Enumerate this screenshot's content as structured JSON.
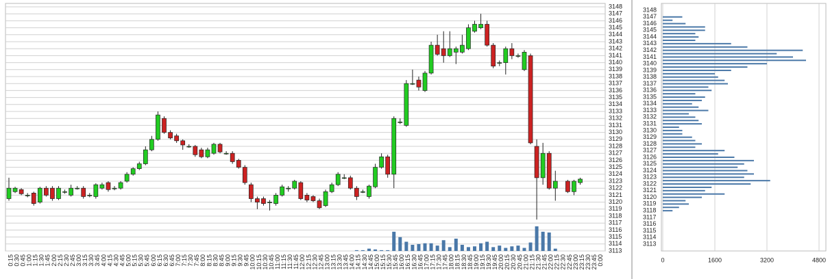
{
  "chart_data": [
    {
      "type": "candlestick",
      "categories": [
        "0:15",
        "0:30",
        "0:45",
        "1:00",
        "1:15",
        "1:30",
        "1:45",
        "2:00",
        "2:15",
        "2:30",
        "2:45",
        "3:00",
        "3:15",
        "3:30",
        "3:45",
        "4:00",
        "4:15",
        "4:30",
        "4:45",
        "5:00",
        "5:15",
        "5:30",
        "5:45",
        "6:00",
        "6:15",
        "6:30",
        "6:45",
        "7:00",
        "7:15",
        "7:30",
        "7:45",
        "8:00",
        "8:15",
        "8:30",
        "8:45",
        "9:00",
        "9:15",
        "9:30",
        "9:45",
        "10:00",
        "10:15",
        "10:30",
        "10:45",
        "11:00",
        "11:15",
        "11:30",
        "11:45",
        "12:00",
        "12:15",
        "12:30",
        "12:45",
        "13:00",
        "13:15",
        "13:30",
        "13:45",
        "14:00",
        "14:15",
        "14:30",
        "14:45",
        "15:00",
        "15:15",
        "15:30",
        "15:45",
        "16:00",
        "16:15",
        "16:30",
        "16:45",
        "17:00",
        "17:15",
        "17:30",
        "17:45",
        "18:00",
        "18:15",
        "18:30",
        "18:45",
        "19:00",
        "19:15",
        "19:30",
        "19:45",
        "20:00",
        "20:15",
        "20:30",
        "20:45",
        "21:00",
        "21:15",
        "21:30",
        "21:45",
        "22:00",
        "22:15",
        "22:30",
        "22:45",
        "23:00",
        "23:15",
        "23:30",
        "23:45",
        "0:00"
      ],
      "open": [
        3120.5,
        3121.5,
        3121.8,
        3121,
        3121.3,
        3120,
        3122,
        3122,
        3120.5,
        3121.5,
        3121,
        3122,
        3122,
        3121,
        3120.8,
        3122,
        3122.8,
        3122,
        3122,
        3123,
        3124,
        3124.8,
        3125.5,
        3127.5,
        3129,
        3132,
        3130,
        3129.5,
        3128.8,
        3128,
        3128,
        3127.5,
        3126.5,
        3127,
        3128.3,
        3127,
        3127,
        3126,
        3125,
        3122.5,
        3120.5,
        3120.5,
        3120,
        3119.8,
        3121,
        3122,
        3122,
        3122.8,
        3121,
        3120.8,
        3120.2,
        3119.5,
        3121.5,
        3122.5,
        3123.5,
        3123.5,
        3122,
        3121.5,
        3120.8,
        3122.2,
        3125,
        3126.5,
        3124,
        3131.5,
        3131,
        3137,
        3137.5,
        3136,
        3138.5,
        3142.5,
        3142,
        3141,
        3141.5,
        3141.5,
        3142,
        3144.5,
        3145,
        3145.5,
        3142.5,
        3140,
        3140,
        3142,
        3141,
        3139,
        3141,
        3128,
        3123.5,
        3127,
        3122,
        null,
        3123,
        3121.5,
        3122.8,
        null,
        null,
        null
      ],
      "high": [
        3123.5,
        3122.2,
        3122,
        3121.3,
        3121.5,
        3122.2,
        3122.3,
        3122.3,
        3122.3,
        3121.8,
        3122.5,
        3122.3,
        3122.3,
        3121.3,
        3122.7,
        3122.8,
        3123,
        3122.3,
        3123,
        3124.3,
        3125,
        3125.8,
        3128,
        3129.5,
        3133,
        3132.3,
        3130.3,
        3129.8,
        3129,
        3128.3,
        3128.2,
        3127.8,
        3127.8,
        3128.5,
        3128.5,
        3127.3,
        3127.3,
        3126.2,
        3125.3,
        3122.8,
        3120.8,
        3120.8,
        3120.3,
        3121.3,
        3122.5,
        3122.3,
        3123.2,
        3123,
        3121.3,
        3121,
        3120.5,
        3121.8,
        3122.8,
        3124.3,
        3124,
        3123.8,
        3122.3,
        3121.8,
        3122.5,
        3125.5,
        3127,
        3126.8,
        3132.3,
        3132,
        3137.5,
        3139,
        3138,
        3138.8,
        3143,
        3144,
        3144.5,
        3144.5,
        3142.3,
        3144,
        3145.5,
        3146,
        3147,
        3146,
        3142.8,
        3140.3,
        3142.3,
        3142.8,
        3141.3,
        3141.8,
        3141.3,
        3129,
        3128.5,
        3127.3,
        3124.5,
        null,
        3123.2,
        3123.2,
        3123.5,
        null,
        null,
        null
      ],
      "low": [
        3120.2,
        3121.3,
        3121,
        3120.7,
        3119.5,
        3119.8,
        3120.8,
        3120.2,
        3120.3,
        3121.2,
        3120.8,
        3121.8,
        3120.5,
        3120.7,
        3120.5,
        3121.8,
        3121.5,
        3121.7,
        3121.8,
        3122.8,
        3123.8,
        3124.6,
        3125.3,
        3127.3,
        3128.8,
        3129.8,
        3129,
        3128.5,
        3127.5,
        3127.8,
        3126.5,
        3126.3,
        3126.3,
        3126.8,
        3127,
        3126.8,
        3125.5,
        3124.8,
        3122.5,
        3120,
        3119,
        3119.5,
        3118.8,
        3119.5,
        3120.8,
        3121.5,
        3121.8,
        3120.3,
        3120,
        3120,
        3119,
        3119.3,
        3121.3,
        3122.3,
        3123.3,
        3121.8,
        3120.3,
        3121.3,
        3120.5,
        3122,
        3124.8,
        3123.5,
        3122,
        3131.2,
        3130.8,
        3136.8,
        3136,
        3135.8,
        3138.3,
        3141,
        3140,
        3140.8,
        3139.8,
        3141.3,
        3141.8,
        3144.3,
        3144.8,
        3142.3,
        3139.2,
        3139.5,
        3138.3,
        3140.5,
        3140.7,
        3138.8,
        3128.3,
        3117.5,
        3122.5,
        3121.8,
        3120.2,
        null,
        3121.3,
        3121,
        3122.5,
        null,
        null,
        null
      ],
      "close": [
        3122,
        3122,
        3121.2,
        3121,
        3119.8,
        3122,
        3121,
        3120.5,
        3122,
        3121.5,
        3122,
        3122,
        3120.8,
        3121,
        3122.5,
        3122.5,
        3121.8,
        3122,
        3122.8,
        3124,
        3124.8,
        3125.5,
        3127.5,
        3129,
        3132.5,
        3130,
        3129.2,
        3128.8,
        3128.2,
        3128,
        3126.8,
        3126.5,
        3127.5,
        3128.3,
        3127.2,
        3127,
        3125.8,
        3125,
        3122.8,
        3120.5,
        3120,
        3119.8,
        3120,
        3121,
        3122.2,
        3122,
        3123,
        3120.5,
        3120.3,
        3120.2,
        3119.2,
        3121.5,
        3122.5,
        3124,
        3123.5,
        3122,
        3120.8,
        3121.5,
        3122.3,
        3125,
        3126.5,
        3124,
        3132,
        3131.5,
        3137,
        3137,
        3136.5,
        3138.5,
        3142.5,
        3141.2,
        3141,
        3142,
        3142,
        3142.5,
        3145,
        3145.5,
        3145.5,
        3142.5,
        3139.5,
        3140,
        3142,
        3141,
        3141,
        3141.5,
        3128.5,
        3123.5,
        3127,
        3122,
        3123,
        null,
        3121.5,
        3123,
        3123.3,
        null,
        null,
        null
      ],
      "volume": [
        0,
        0,
        0,
        0,
        0,
        0,
        0,
        0,
        0,
        0,
        0,
        0,
        0,
        0,
        0,
        0,
        0,
        0,
        0,
        0,
        0,
        0,
        0,
        0,
        0,
        0,
        0,
        0,
        0,
        0,
        0,
        0,
        0,
        0,
        0,
        0,
        0,
        0,
        0,
        0,
        0,
        0,
        0,
        0,
        0,
        0,
        0,
        0,
        0,
        0,
        0,
        0,
        0,
        0,
        0,
        0,
        1,
        1,
        3,
        2,
        1,
        1,
        25,
        18,
        12,
        8,
        9,
        10,
        10,
        7,
        14,
        5,
        16,
        8,
        5,
        6,
        10,
        12,
        5,
        7,
        4,
        6,
        7,
        4,
        11,
        32,
        25,
        24,
        3,
        null,
        0,
        0,
        0,
        null,
        null,
        null
      ],
      "up_color": "#22cc22",
      "down_color": "#cc2222",
      "volume_color": "#4a78a8",
      "ylim": [
        3113,
        3148
      ],
      "yticks": [
        3113,
        3114,
        3115,
        3116,
        3117,
        3118,
        3119,
        3120,
        3121,
        3122,
        3123,
        3124,
        3125,
        3126,
        3127,
        3128,
        3129,
        3130,
        3131,
        3132,
        3133,
        3134,
        3135,
        3136,
        3137,
        3138,
        3139,
        3140,
        3141,
        3142,
        3143,
        3144,
        3145,
        3146,
        3147,
        3148
      ],
      "grid": true
    },
    {
      "type": "hbar",
      "y": [
        3147,
        3146.5,
        3146,
        3145.5,
        3145,
        3144.5,
        3144,
        3143.5,
        3143,
        3142.5,
        3142,
        3141.5,
        3141,
        3140.5,
        3140,
        3139.5,
        3139,
        3138.5,
        3138,
        3137.5,
        3137,
        3136.5,
        3136,
        3135.5,
        3135,
        3134.5,
        3134,
        3133.5,
        3133,
        3132.5,
        3132,
        3131.5,
        3131,
        3130.5,
        3130,
        3129.5,
        3129,
        3128.5,
        3128,
        3127.5,
        3127,
        3126.5,
        3126,
        3125.5,
        3125,
        3124.5,
        3124,
        3123.5,
        3123,
        3122.5,
        3122,
        3121.5,
        3121,
        3120.5,
        3120,
        3119.5,
        3119,
        3118.5,
        3118
      ],
      "values": [
        600,
        300,
        700,
        1300,
        1300,
        1000,
        1100,
        1000,
        2100,
        2600,
        4300,
        3500,
        4000,
        4400,
        3200,
        2600,
        2100,
        1600,
        1700,
        1900,
        2000,
        1400,
        1500,
        1000,
        1300,
        1200,
        900,
        1100,
        1400,
        800,
        1000,
        1100,
        1200,
        500,
        600,
        600,
        900,
        1000,
        1200,
        1000,
        1900,
        1700,
        2200,
        2800,
        2500,
        2300,
        2600,
        2800,
        2500,
        3300,
        2700,
        1500,
        1300,
        1900,
        1200,
        700,
        800,
        500,
        300
      ],
      "color": "#4a78a8",
      "xlim": [
        0,
        4800
      ],
      "xticks": [
        0,
        1600,
        3200,
        4800
      ],
      "ylim": [
        3113,
        3148
      ],
      "yticks": [
        3113,
        3114,
        3115,
        3116,
        3117,
        3118,
        3119,
        3120,
        3121,
        3122,
        3123,
        3124,
        3125,
        3126,
        3127,
        3128,
        3129,
        3130,
        3131,
        3132,
        3133,
        3134,
        3135,
        3136,
        3137,
        3138,
        3139,
        3140,
        3141,
        3142,
        3143,
        3144,
        3145,
        3146,
        3147,
        3148
      ],
      "grid": true
    }
  ]
}
